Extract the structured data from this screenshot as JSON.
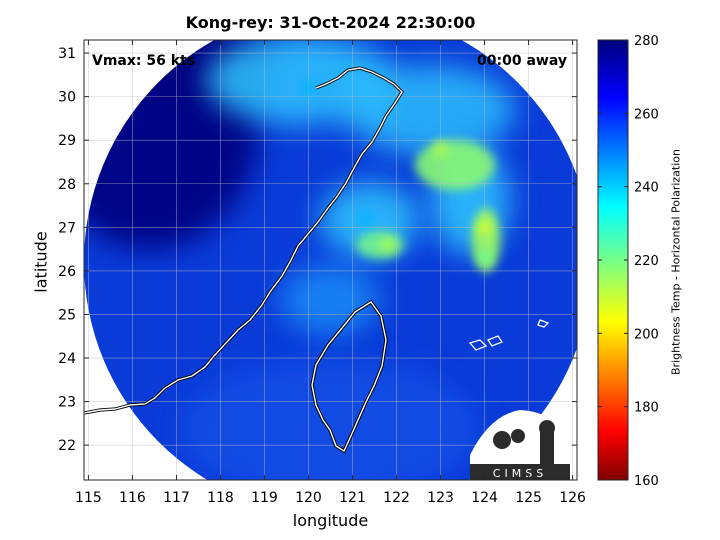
{
  "chart_data": {
    "type": "heatmap",
    "title": "Kong-rey: 31-Oct-2024 22:30:00",
    "xlabel": "longitude",
    "ylabel": "latitude",
    "xlim": [
      114.9,
      126.1
    ],
    "ylim": [
      21.2,
      31.3
    ],
    "xticks": [
      115,
      116,
      117,
      118,
      119,
      120,
      121,
      122,
      123,
      124,
      125,
      126
    ],
    "yticks": [
      22,
      23,
      24,
      25,
      26,
      27,
      28,
      29,
      30,
      31
    ],
    "grid": true,
    "annotations": {
      "vmax": "Vmax: 56 kts",
      "time_away": "00:00 away"
    },
    "colorbar": {
      "label": "Brightness Temp - Horizontal Polarization",
      "range": [
        160,
        280
      ],
      "ticks": [
        160,
        180,
        200,
        220,
        240,
        260,
        280
      ],
      "colormap": "jet"
    },
    "swath": {
      "center": [
        120.8,
        26.2
      ],
      "radius_deg": 5.0
    },
    "features": [
      {
        "name": "warm-rainband-east-1",
        "lon": 123.0,
        "lat": 28.8,
        "value": 212
      },
      {
        "name": "warm-rainband-east-2",
        "lon": 124.0,
        "lat": 27.0,
        "value": 208
      },
      {
        "name": "warm-rainband-east-3",
        "lon": 124.0,
        "lat": 26.3,
        "value": 222
      },
      {
        "name": "inner-core-band",
        "lon": 121.8,
        "lat": 26.6,
        "value": 213
      },
      {
        "name": "cyan-band-north",
        "lon": 120.0,
        "lat": 30.2,
        "value": 243
      },
      {
        "name": "cyan-band-mid",
        "lon": 121.3,
        "lat": 27.2,
        "value": 243
      }
    ]
  },
  "colors": {
    "background_cold": "#00007f",
    "swath_base": "#0a3bd8",
    "coastline": "#ffffff",
    "coastline_outline": "#000000"
  },
  "logo": {
    "text": "CIMSS"
  }
}
